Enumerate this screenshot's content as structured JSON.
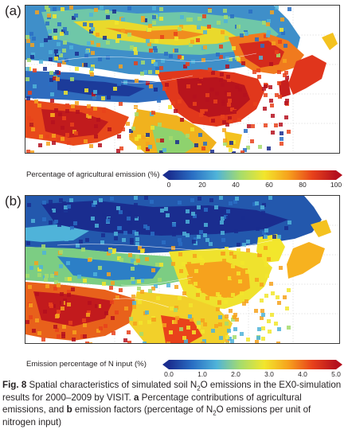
{
  "panels": [
    {
      "letter": "(a)",
      "colorbar_title": "Percentage of agricultural emission (%)",
      "ticks": [
        "0",
        "20",
        "40",
        "60",
        "80",
        "100"
      ]
    },
    {
      "letter": "(b)",
      "colorbar_title": "Emission percentage of N input (%)",
      "ticks": [
        "0.0",
        "1.0",
        "2.0",
        "3.0",
        "4.0",
        "5.0"
      ]
    }
  ],
  "colormap": [
    "#1a2d8f",
    "#2a6fc4",
    "#4fb3d9",
    "#a6dc6c",
    "#f2e62c",
    "#f6a21d",
    "#e8421b",
    "#b5101e"
  ],
  "caption": {
    "fig_label": "Fig. 8",
    "text_1": " Spatial characteristics of simulated soil N",
    "sub_1": "2",
    "text_2": "O emissions in the EX0-simulation results for 2000–2009 by VISIT. ",
    "a_label": "a",
    "text_3": " Percentage contributions of agricultural emissions, and ",
    "b_label": "b",
    "text_4": " emission factors (percentage of N",
    "sub_2": "2",
    "text_5": "O emissions per unit of nitrogen input)"
  }
}
